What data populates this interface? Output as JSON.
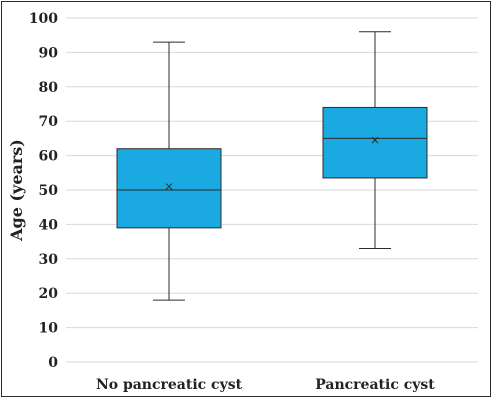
{
  "chart_data": {
    "type": "boxplot",
    "ylabel": "Age (years)",
    "xlabel": "",
    "ylim": [
      0,
      100
    ],
    "yticks": [
      0,
      10,
      20,
      30,
      40,
      50,
      60,
      70,
      80,
      90,
      100
    ],
    "grid": true,
    "categories": [
      "No pancreatic cyst",
      "Pancreatic cyst"
    ],
    "boxes": [
      {
        "category": "No pancreatic cyst",
        "min": 18,
        "q1": 39,
        "median": 50,
        "q3": 62,
        "max": 93,
        "mean": 51
      },
      {
        "category": "Pancreatic cyst",
        "min": 33,
        "q1": 53.5,
        "median": 65,
        "q3": 74,
        "max": 96,
        "mean": 64.5
      }
    ],
    "colors": {
      "box_fill": "#1aa9e0",
      "box_stroke": "#2b2b2b",
      "grid": "#d9d9d9",
      "whisker": "#2b2b2b"
    }
  }
}
